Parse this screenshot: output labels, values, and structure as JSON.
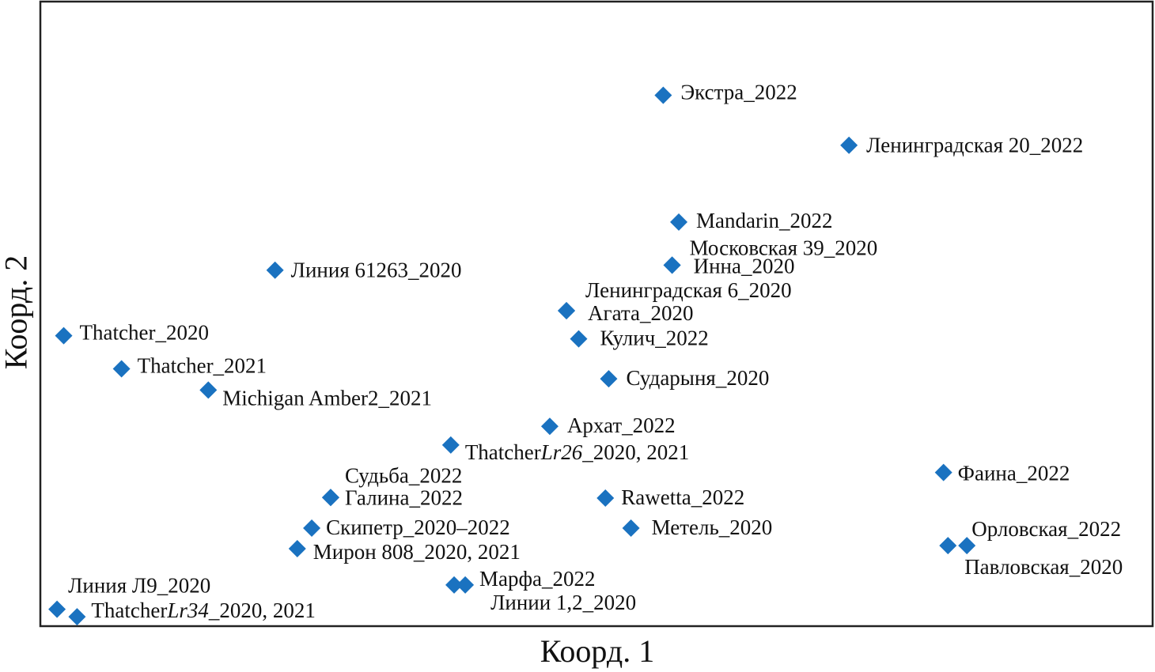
{
  "colors": {
    "marker": "#1a72c0",
    "frame": "#222222",
    "text": "#111111"
  },
  "chart_data": {
    "type": "scatter",
    "title": "",
    "xlabel": "Коорд. 1",
    "ylabel": "Коорд. 2",
    "grid": false,
    "legend": "none",
    "marker": "diamond",
    "xlim": [
      0,
      1000
    ],
    "ylim": [
      0,
      1000
    ],
    "points": [
      {
        "label": "Экстра_2022",
        "x": 560,
        "y": 850
      },
      {
        "label": "Ленинградская 20_2022",
        "x": 727,
        "y": 770
      },
      {
        "label": "Mandarin_2022",
        "x": 574,
        "y": 647
      },
      {
        "label": "Московская 39_2020",
        "x": 568,
        "y": 578
      },
      {
        "label": "Инна_2020",
        "x": 568,
        "y": 578
      },
      {
        "label": "Линия 61263_2020",
        "x": 211,
        "y": 570
      },
      {
        "label": "Ленинградская 6_2020",
        "x": 473,
        "y": 505
      },
      {
        "label": "Агата_2020",
        "x": 473,
        "y": 505
      },
      {
        "label": "Кулич_2022",
        "x": 484,
        "y": 460
      },
      {
        "label": "Thatcher_2020",
        "x": 21,
        "y": 465
      },
      {
        "label": "Thatcher_2021",
        "x": 73,
        "y": 412
      },
      {
        "label": "Michigan Amber2_2021",
        "x": 151,
        "y": 378
      },
      {
        "label": "Сударыня_2020",
        "x": 511,
        "y": 396
      },
      {
        "label": "Архат_2022",
        "x": 458,
        "y": 320
      },
      {
        "label": "ThatcherLr26_2020, 2021",
        "x": 369,
        "y": 290
      },
      {
        "label": "Фаина_2022",
        "x": 812,
        "y": 246
      },
      {
        "label": "Судьба_2022",
        "x": 261,
        "y": 206
      },
      {
        "label": "Галина_2022",
        "x": 261,
        "y": 206
      },
      {
        "label": "Rawetta_2022",
        "x": 508,
        "y": 205
      },
      {
        "label": "Скипетр_2020–2022",
        "x": 244,
        "y": 157
      },
      {
        "label": "Метель_2020",
        "x": 531,
        "y": 157
      },
      {
        "label": "Мирон 808_2020, 2021",
        "x": 231,
        "y": 124
      },
      {
        "label": "Орловская_2022",
        "x": 816,
        "y": 129
      },
      {
        "label": "Павловская_2020",
        "x": 833,
        "y": 129
      },
      {
        "label": "Марфа_2022",
        "x": 372,
        "y": 66
      },
      {
        "label": "Линии 1,2_2020",
        "x": 382,
        "y": 66
      },
      {
        "label": "Линия Л9_2020",
        "x": 15,
        "y": 27
      },
      {
        "label": "ThatcherLr34_2020, 2021",
        "x": 33,
        "y": 15
      }
    ],
    "annotations": [
      {
        "parts": [
          {
            "t": "Экстра_2022"
          }
        ]
      },
      {
        "parts": [
          {
            "t": "Ленинградская 20_2022"
          }
        ]
      },
      {
        "parts": [
          {
            "t": "Mandarin_2022"
          }
        ]
      },
      {
        "parts": [
          {
            "t": "Московская 39_2020"
          }
        ]
      },
      {
        "parts": [
          {
            "t": "Инна_2020"
          }
        ]
      },
      {
        "parts": [
          {
            "t": "Линия 61263_2020"
          }
        ]
      },
      {
        "parts": [
          {
            "t": "Ленинградская 6_2020"
          }
        ]
      },
      {
        "parts": [
          {
            "t": "Агата_2020"
          }
        ]
      },
      {
        "parts": [
          {
            "t": "Кулич_2022"
          }
        ]
      },
      {
        "parts": [
          {
            "t": "Thatcher_2020"
          }
        ]
      },
      {
        "parts": [
          {
            "t": "Thatcher_2021"
          }
        ]
      },
      {
        "parts": [
          {
            "t": "Michigan Amber2_2021"
          }
        ]
      },
      {
        "parts": [
          {
            "t": "Сударыня_2020"
          }
        ]
      },
      {
        "parts": [
          {
            "t": "Архат_2022"
          }
        ]
      },
      {
        "parts": [
          {
            "t": "Thatcher"
          },
          {
            "t": "Lr26",
            "i": true
          },
          {
            "t": "_2020, 2021"
          }
        ]
      },
      {
        "parts": [
          {
            "t": "Фаина_2022"
          }
        ]
      },
      {
        "parts": [
          {
            "t": "Судьба_2022"
          }
        ]
      },
      {
        "parts": [
          {
            "t": "Галина_2022"
          }
        ]
      },
      {
        "parts": [
          {
            "t": "Rawetta_2022"
          }
        ]
      },
      {
        "parts": [
          {
            "t": "Скипетр_2020–2022"
          }
        ]
      },
      {
        "parts": [
          {
            "t": "Метель_2020"
          }
        ]
      },
      {
        "parts": [
          {
            "t": "Мирон 808_2020, 2021"
          }
        ]
      },
      {
        "parts": [
          {
            "t": "Орловская_2022"
          }
        ]
      },
      {
        "parts": [
          {
            "t": "Павловская_2020"
          }
        ]
      },
      {
        "parts": [
          {
            "t": "Марфа_2022"
          }
        ]
      },
      {
        "parts": [
          {
            "t": "Линии 1,2_2020"
          }
        ]
      },
      {
        "parts": [
          {
            "t": "Линия Л9_2020"
          }
        ]
      },
      {
        "parts": [
          {
            "t": "Thatcher"
          },
          {
            "t": "Lr34",
            "i": true
          },
          {
            "t": "_2020, 2021"
          }
        ]
      }
    ]
  }
}
